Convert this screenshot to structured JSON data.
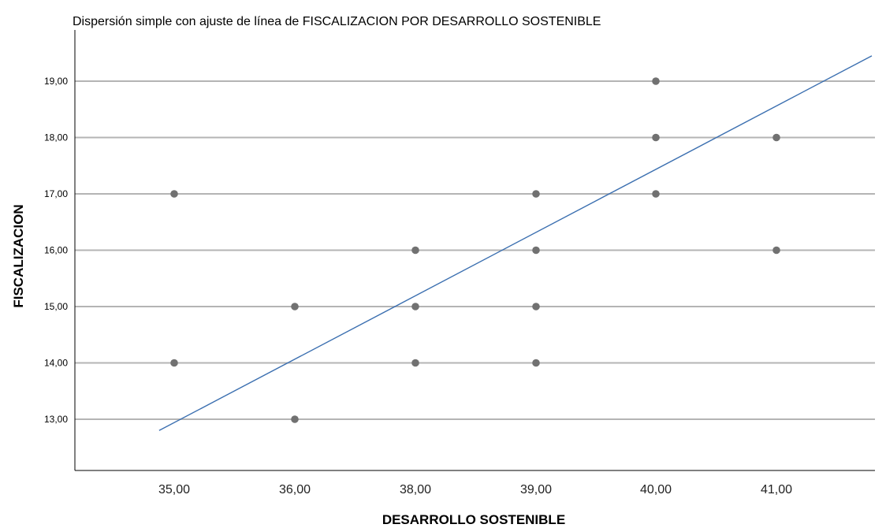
{
  "chart_data": {
    "type": "scatter",
    "title": "Dispersión simple con ajuste de línea de FISCALIZACION POR DESARROLLO SOSTENIBLE",
    "xlabel": "DESARROLLO SOSTENIBLE",
    "ylabel": "FISCALIZACION",
    "x_categories": [
      "35,00",
      "36,00",
      "38,00",
      "39,00",
      "40,00",
      "41,00"
    ],
    "y_ticks": [
      "13,00",
      "14,00",
      "15,00",
      "16,00",
      "17,00",
      "18,00",
      "19,00"
    ],
    "y_tick_values": [
      13,
      14,
      15,
      16,
      17,
      18,
      19
    ],
    "ylim": [
      12.1,
      19.9
    ],
    "grid": "horizontal",
    "points": [
      {
        "x": "35,00",
        "y": 17
      },
      {
        "x": "35,00",
        "y": 14
      },
      {
        "x": "36,00",
        "y": 15
      },
      {
        "x": "36,00",
        "y": 13
      },
      {
        "x": "38,00",
        "y": 16
      },
      {
        "x": "38,00",
        "y": 15
      },
      {
        "x": "38,00",
        "y": 14
      },
      {
        "x": "39,00",
        "y": 17
      },
      {
        "x": "39,00",
        "y": 16
      },
      {
        "x": "39,00",
        "y": 15
      },
      {
        "x": "39,00",
        "y": 14
      },
      {
        "x": "40,00",
        "y": 19
      },
      {
        "x": "40,00",
        "y": 18
      },
      {
        "x": "40,00",
        "y": 17
      },
      {
        "x": "41,00",
        "y": 18
      },
      {
        "x": "41,00",
        "y": 16
      }
    ],
    "fit_line": {
      "x_start": 34.85,
      "y_start": 12.8,
      "x_end": 41.95,
      "y_end": 19.45
    }
  }
}
